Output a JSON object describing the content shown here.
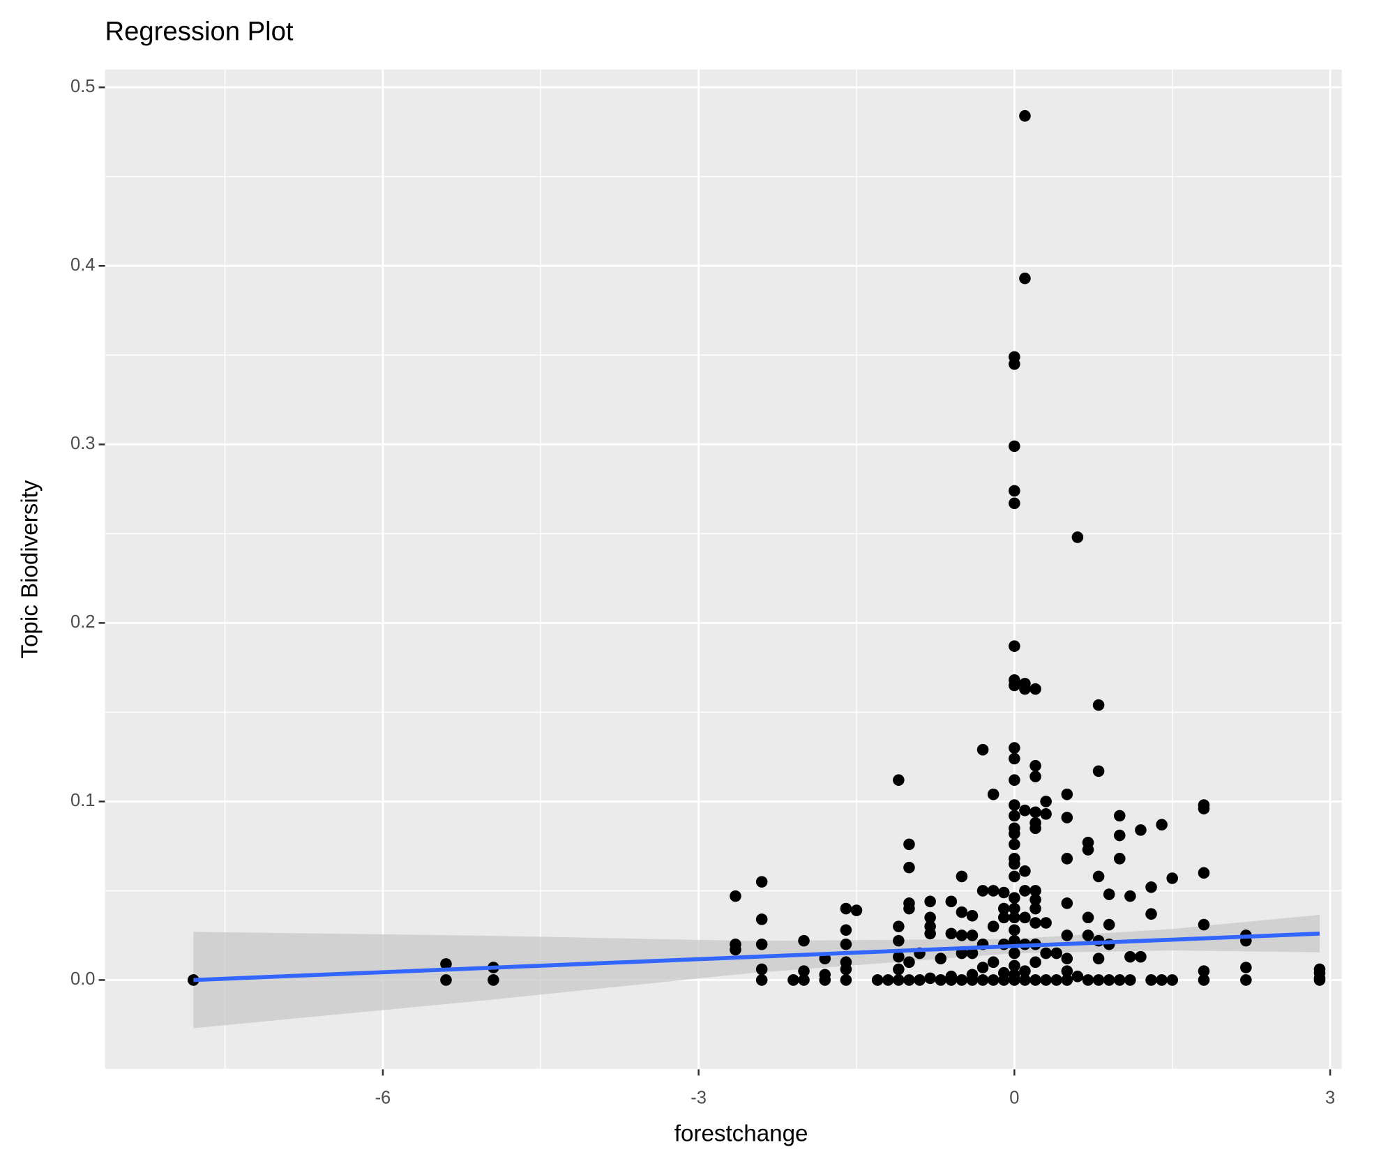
{
  "chart_data": {
    "type": "scatter",
    "title": "Regression Plot",
    "x_label": "forestchange",
    "y_label": "Topic Biodiversity",
    "xlim": [
      -8.64,
      3.11
    ],
    "ylim": [
      -0.05,
      0.51
    ],
    "xticks": [
      -6,
      -3,
      0,
      3
    ],
    "yticks": [
      {
        "value": 0,
        "label": "0.0"
      },
      0.1,
      0.2,
      0.3,
      0.4,
      0.5
    ],
    "x_minor_ticks": [
      -7.5,
      -4.5,
      -1.5,
      1.5
    ],
    "y_minor_ticks": [
      -0.05,
      0.05,
      0.15,
      0.25,
      0.35,
      0.45
    ],
    "grid": true,
    "color": "#000000",
    "x": [
      -7.8,
      -5.4,
      -5.4,
      -4.95,
      -4.95,
      -2.65,
      -2.65,
      -2.65,
      -2.4,
      -2.4,
      -2.4,
      -2.4,
      -2.4,
      -2.1,
      -2.0,
      -2.0,
      -2.0,
      -1.8,
      -1.8,
      -1.8,
      -1.6,
      -1.6,
      -1.6,
      -1.6,
      -1.6,
      -1.6,
      -1.5,
      -1.3,
      -1.2,
      -1.1,
      -1.1,
      -1.1,
      -1.1,
      -1.1,
      -1.1,
      -1.0,
      -1.0,
      -1.0,
      -1.0,
      -1.0,
      -1.0,
      -0.9,
      -0.9,
      -0.8,
      -0.8,
      -0.8,
      -0.8,
      -0.8,
      -0.7,
      -0.7,
      -0.6,
      -0.6,
      -0.6,
      -0.6,
      -0.5,
      -0.5,
      -0.5,
      -0.5,
      -0.5,
      -0.4,
      -0.4,
      -0.4,
      -0.4,
      -0.4,
      -0.3,
      -0.3,
      -0.3,
      -0.3,
      -0.3,
      -0.2,
      -0.2,
      -0.2,
      -0.2,
      -0.2,
      -0.1,
      -0.1,
      -0.1,
      -0.1,
      -0.1,
      -0.1,
      0,
      0,
      0,
      0,
      0,
      0,
      0,
      0,
      0,
      0,
      0,
      0,
      0,
      0,
      0,
      0,
      0,
      0,
      0,
      0,
      0,
      0,
      0,
      0,
      0,
      0,
      0,
      0,
      0.1,
      0.1,
      0.1,
      0.1,
      0.1,
      0.1,
      0.1,
      0.1,
      0.1,
      0.1,
      0.1,
      0.2,
      0.2,
      0.2,
      0.2,
      0.2,
      0.2,
      0.2,
      0.2,
      0.2,
      0.2,
      0.2,
      0.2,
      0.2,
      0.3,
      0.3,
      0.3,
      0.3,
      0.3,
      0.4,
      0.4,
      0.5,
      0.5,
      0.5,
      0.5,
      0.5,
      0.5,
      0.5,
      0.5,
      0.6,
      0.6,
      0.7,
      0.7,
      0.7,
      0.7,
      0.7,
      0.8,
      0.8,
      0.8,
      0.8,
      0.8,
      0.8,
      0.9,
      0.9,
      0.9,
      0.9,
      1.0,
      1.0,
      1.0,
      1.0,
      1.1,
      1.1,
      1.1,
      1.2,
      1.2,
      1.3,
      1.3,
      1.3,
      1.4,
      1.4,
      1.5,
      1.5,
      1.8,
      1.8,
      1.8,
      1.8,
      1.8,
      1.8,
      2.2,
      2.2,
      2.2,
      2.2,
      2.9,
      2.9,
      2.9,
      2.9
    ],
    "values": [
      0,
      0.009,
      0,
      0.007,
      0,
      0.047,
      0.02,
      0.017,
      0.055,
      0.034,
      0.02,
      0.006,
      0,
      0,
      0.022,
      0.005,
      0,
      0.012,
      0.003,
      0,
      0.04,
      0.028,
      0.02,
      0.01,
      0.006,
      0,
      0.039,
      0,
      0,
      0.112,
      0.03,
      0.022,
      0.013,
      0.006,
      0,
      0.076,
      0.063,
      0.043,
      0.04,
      0.01,
      0,
      0.015,
      0,
      0.044,
      0.035,
      0.03,
      0.026,
      0.001,
      0.012,
      0,
      0.044,
      0.026,
      0.002,
      0,
      0.058,
      0.038,
      0.025,
      0.015,
      0,
      0.036,
      0.025,
      0.015,
      0.003,
      0,
      0.129,
      0.05,
      0.02,
      0.007,
      0,
      0.104,
      0.05,
      0.03,
      0.01,
      0,
      0.049,
      0.04,
      0.035,
      0.02,
      0.004,
      0,
      0.349,
      0.345,
      0.299,
      0.274,
      0.267,
      0.187,
      0.168,
      0.165,
      0.13,
      0.124,
      0.112,
      0.098,
      0.092,
      0.085,
      0.082,
      0.076,
      0.068,
      0.065,
      0.058,
      0.046,
      0.04,
      0.035,
      0.028,
      0.022,
      0.015,
      0.008,
      0.003,
      0,
      0.484,
      0.393,
      0.166,
      0.163,
      0.095,
      0.061,
      0.05,
      0.035,
      0.02,
      0.005,
      0,
      0.163,
      0.12,
      0.114,
      0.094,
      0.088,
      0.085,
      0.05,
      0.045,
      0.04,
      0.032,
      0.02,
      0.01,
      0,
      0.1,
      0.093,
      0.032,
      0.015,
      0,
      0.015,
      0,
      0.104,
      0.091,
      0.068,
      0.043,
      0.025,
      0.012,
      0.005,
      0,
      0.248,
      0.002,
      0.077,
      0.073,
      0.035,
      0.025,
      0,
      0.154,
      0.117,
      0.058,
      0.022,
      0.012,
      0,
      0.048,
      0.031,
      0.02,
      0,
      0.092,
      0.081,
      0.068,
      0,
      0.047,
      0.013,
      0,
      0.084,
      0.013,
      0.052,
      0.037,
      0,
      0.087,
      0,
      0.057,
      0,
      0.098,
      0.096,
      0.06,
      0.031,
      0.005,
      0,
      0.025,
      0.022,
      0.007,
      0,
      0.006,
      0.004,
      0.001,
      0
    ],
    "regression": {
      "color": "#3366ff",
      "band_color": "#c8c8c8",
      "x": [
        -7.8,
        -5,
        -2.5,
        0,
        1.5,
        2.9
      ],
      "y": [
        0.0,
        0.0068,
        0.0129,
        0.019,
        0.0226,
        0.026
      ],
      "ci_lower": [
        -0.027,
        -0.0112,
        0.0039,
        0.015,
        0.0166,
        0.0155
      ],
      "ci_upper": [
        0.027,
        0.0248,
        0.0219,
        0.023,
        0.0286,
        0.0365
      ]
    }
  }
}
